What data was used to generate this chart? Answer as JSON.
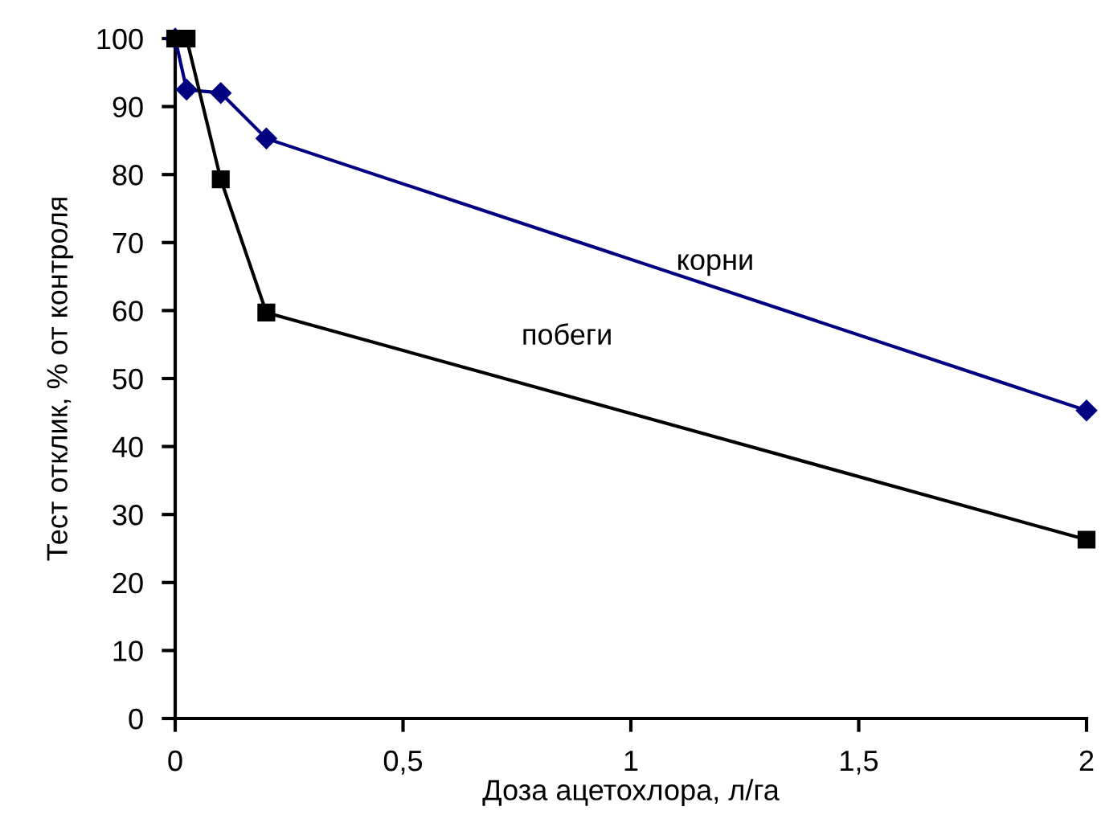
{
  "chart_data": {
    "type": "line",
    "xlabel": "Доза ацетохлора, л/га",
    "ylabel": "Тест отклик, % от контроля",
    "x": [
      0,
      0.025,
      0.1,
      0.2,
      2
    ],
    "series": [
      {
        "name": "корни",
        "color": "#000080",
        "marker": "diamond",
        "values": [
          100,
          92.5,
          92,
          85.3,
          45.3
        ]
      },
      {
        "name": "побеги",
        "color": "#000000",
        "marker": "square",
        "values": [
          100,
          100,
          79.3,
          59.7,
          26.3
        ]
      }
    ],
    "xlim": [
      0,
      2
    ],
    "xticks": [
      0,
      {
        "value": 0.5,
        "label": "0,5"
      },
      1,
      {
        "value": 1.5,
        "label": "1,5"
      },
      2
    ],
    "ylim": [
      0,
      100
    ],
    "yticks": [
      0,
      10,
      20,
      30,
      40,
      50,
      60,
      70,
      80,
      90,
      100
    ],
    "grid": false,
    "legend": false,
    "line_style": "solid"
  }
}
